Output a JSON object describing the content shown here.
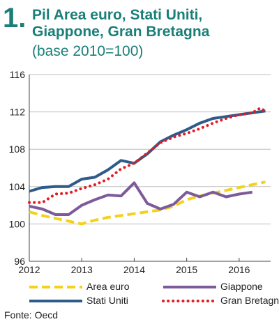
{
  "header": {
    "figure_number": "1.",
    "title": "Pil Area euro, Stati Uniti, Giappone, Gran Bretagna",
    "subtitle": "(base 2010=100)"
  },
  "source": "Fonte: Oecd",
  "chart_data": {
    "type": "line",
    "title": "Pil Area euro, Stati Uniti, Giappone, Gran Bretagna",
    "subtitle": "(base 2010=100)",
    "xlabel": "",
    "ylabel": "",
    "x_ticks": [
      "2012",
      "2013",
      "2014",
      "2015",
      "2016"
    ],
    "y_ticks": [
      "96",
      "100",
      "104",
      "108",
      "112",
      "116"
    ],
    "xlim": [
      2012.0,
      2016.6
    ],
    "ylim": [
      96,
      116
    ],
    "grid": "horizontal",
    "legend": "bottom",
    "series": [
      {
        "name": "Area euro",
        "color": "#f2d21b",
        "style": "dashed",
        "x": [
          2012.0,
          2012.25,
          2012.5,
          2012.75,
          2013.0,
          2013.25,
          2013.5,
          2013.75,
          2014.0,
          2014.25,
          2014.5,
          2014.75,
          2015.0,
          2015.25,
          2015.5,
          2015.75,
          2016.0,
          2016.25,
          2016.5
        ],
        "values": [
          101.3,
          100.9,
          100.6,
          100.3,
          100.0,
          100.4,
          100.7,
          100.9,
          101.1,
          101.3,
          101.5,
          101.9,
          102.6,
          103.0,
          103.3,
          103.6,
          103.9,
          104.2,
          104.5
        ]
      },
      {
        "name": "Giappone",
        "color": "#7d5a9b",
        "style": "solid",
        "x": [
          2012.0,
          2012.25,
          2012.5,
          2012.75,
          2013.0,
          2013.25,
          2013.5,
          2013.75,
          2014.0,
          2014.25,
          2014.5,
          2014.75,
          2015.0,
          2015.25,
          2015.5,
          2015.75,
          2016.0,
          2016.25
        ],
        "values": [
          101.9,
          101.6,
          101.0,
          101.0,
          102.0,
          102.6,
          103.1,
          103.0,
          104.4,
          102.2,
          101.6,
          102.1,
          103.4,
          102.9,
          103.4,
          102.9,
          103.2,
          103.4
        ]
      },
      {
        "name": "Stati Uniti",
        "color": "#2e5b8a",
        "style": "solid",
        "x": [
          2012.0,
          2012.25,
          2012.5,
          2012.75,
          2013.0,
          2013.25,
          2013.5,
          2013.75,
          2014.0,
          2014.25,
          2014.5,
          2014.75,
          2015.0,
          2015.25,
          2015.5,
          2015.75,
          2016.0,
          2016.25,
          2016.5
        ],
        "values": [
          103.5,
          103.9,
          104.0,
          104.0,
          104.8,
          105.0,
          105.8,
          106.8,
          106.5,
          107.5,
          108.8,
          109.5,
          110.1,
          110.8,
          111.3,
          111.5,
          111.7,
          111.9,
          112.1
        ]
      },
      {
        "name": "Gran Bretagna",
        "color": "#e11b22",
        "style": "dotted",
        "x": [
          2012.0,
          2012.25,
          2012.5,
          2012.75,
          2013.0,
          2013.25,
          2013.5,
          2013.75,
          2014.0,
          2014.25,
          2014.5,
          2014.75,
          2015.0,
          2015.25,
          2015.5,
          2015.75,
          2016.0,
          2016.25,
          2016.4,
          2016.5
        ],
        "values": [
          102.3,
          102.3,
          103.2,
          103.3,
          103.8,
          104.2,
          104.8,
          105.9,
          106.5,
          107.6,
          108.7,
          109.3,
          109.7,
          110.2,
          110.8,
          111.3,
          111.7,
          111.9,
          112.4,
          112.1
        ]
      }
    ]
  }
}
